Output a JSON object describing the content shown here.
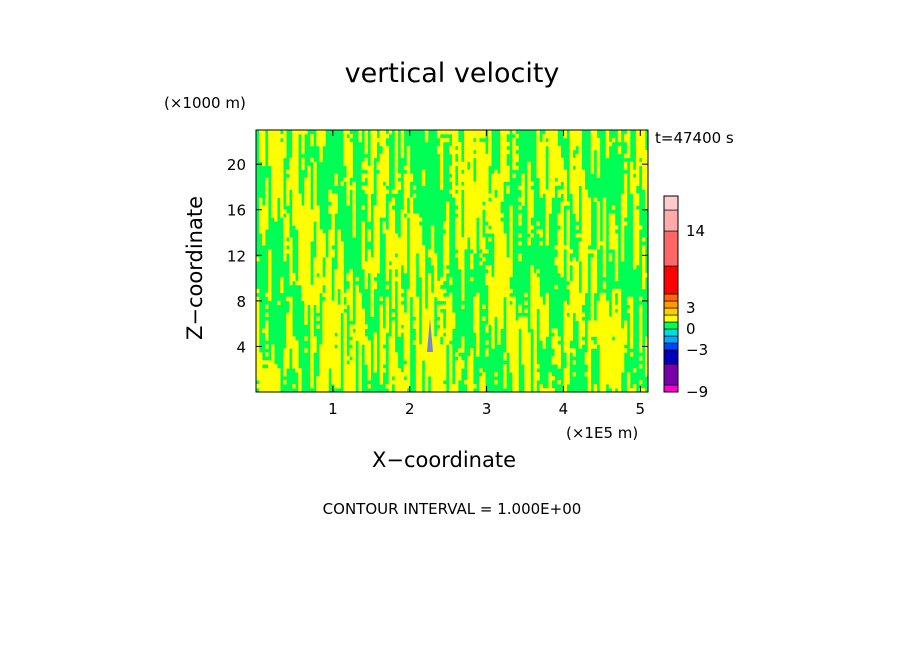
{
  "chart_data": {
    "type": "heatmap",
    "title": "vertical velocity",
    "xlabel": "X−coordinate",
    "ylabel": "Z−coordinate",
    "x_units": "(×1E5 m)",
    "z_units": "(×1000 m)",
    "time_label": "t=47400 s",
    "contour_interval": "CONTOUR INTERVAL = 1.000E+00",
    "xlim": [
      0,
      5.1
    ],
    "ylim": [
      0,
      23
    ],
    "x_ticks": [
      1,
      2,
      3,
      4,
      5
    ],
    "y_ticks": [
      4,
      8,
      12,
      16,
      20
    ],
    "grid": false,
    "dominant_field_colors": {
      "positive_small": "#ffff00",
      "near_zero": "#00ff55"
    },
    "colorbar": {
      "tick_labels": [
        "14",
        "3",
        "0",
        "−3",
        "−9"
      ],
      "tick_values": [
        14,
        3,
        0,
        -3,
        -9
      ],
      "levels": [
        {
          "value": -9,
          "color": "#ff00cc"
        },
        {
          "value": -8,
          "color": "#7700aa"
        },
        {
          "value": -5,
          "color": "#0000bb"
        },
        {
          "value": -3,
          "color": "#0044ff"
        },
        {
          "value": -2,
          "color": "#00aaff"
        },
        {
          "value": -1,
          "color": "#00dddd"
        },
        {
          "value": 0,
          "color": "#00ff55"
        },
        {
          "value": 1,
          "color": "#ffff00"
        },
        {
          "value": 2,
          "color": "#ffcc00"
        },
        {
          "value": 3,
          "color": "#ff9900"
        },
        {
          "value": 4,
          "color": "#ff6600"
        },
        {
          "value": 5,
          "color": "#ff0000"
        },
        {
          "value": 9,
          "color": "#ff6666"
        },
        {
          "value": 14,
          "color": "#ffaaaa"
        },
        {
          "value": 17,
          "color": "#ffcccc"
        }
      ]
    }
  }
}
